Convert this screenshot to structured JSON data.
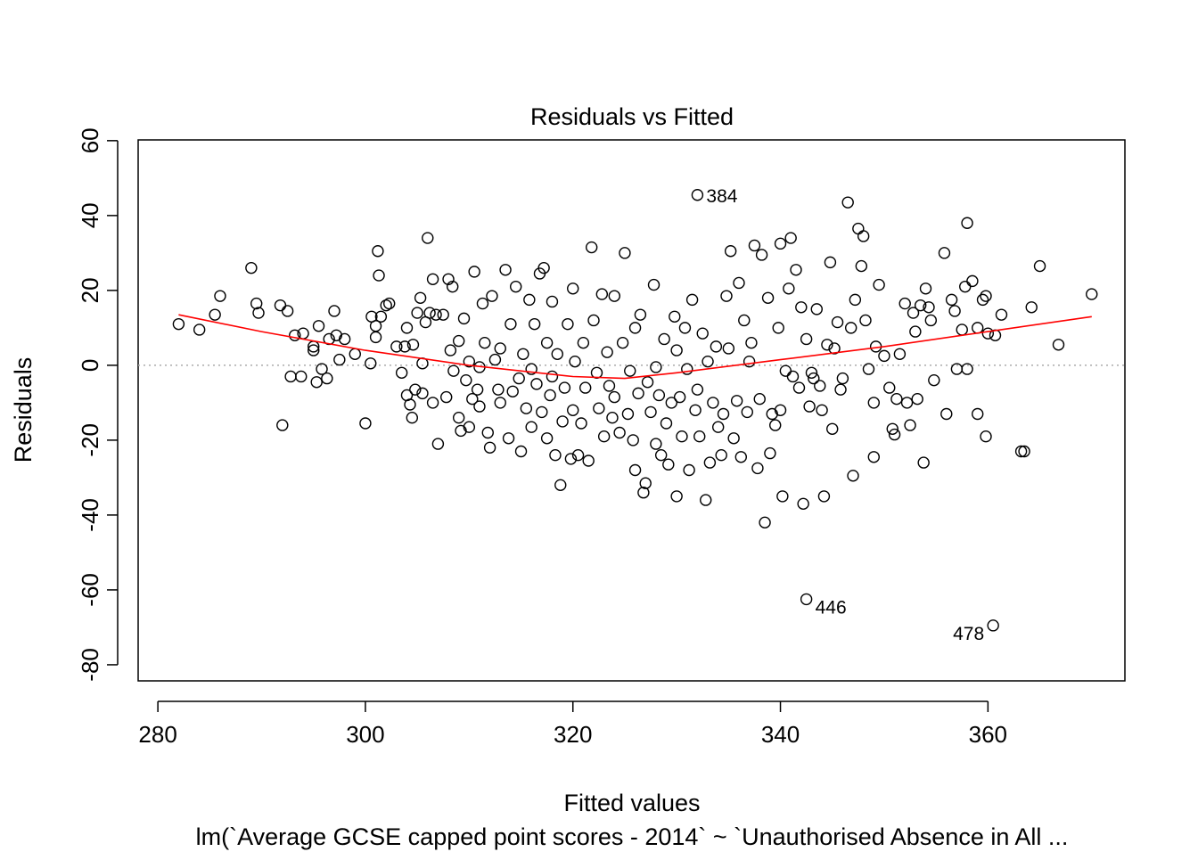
{
  "chart_data": {
    "type": "scatter",
    "title": "Residuals vs Fitted",
    "x_label": "Fitted values",
    "y_label": "Residuals",
    "caption": "lm(`Average GCSE capped point scores - 2014` ~ `Unauthorised Absence in All ...",
    "xlim": [
      278.1,
      373.2
    ],
    "ylim": [
      -84.3,
      60.2
    ],
    "xticks": [
      280,
      300,
      320,
      340,
      360
    ],
    "yticks": [
      -80,
      -60,
      -40,
      -20,
      0,
      20,
      40,
      60
    ],
    "point_color": "#000000",
    "reference_line": 0,
    "x": [
      282,
      284,
      285.5,
      286,
      289,
      289.5,
      289.7,
      291.8,
      292,
      292.5,
      292.8,
      293.2,
      293.8,
      294,
      295,
      295,
      295.3,
      295.5,
      295.8,
      296.3,
      296.5,
      297,
      297.2,
      297.5,
      298,
      299,
      300,
      300.5,
      300.6,
      301,
      301,
      301.2,
      301.3,
      301.5,
      302,
      302.3,
      303,
      303.5,
      303.8,
      304,
      304,
      304.3,
      304.5,
      304.6,
      304.8,
      305,
      305.3,
      305.5,
      305.5,
      305.8,
      306,
      306.2,
      306.5,
      306.5,
      306.8,
      307,
      307.5,
      307.8,
      308,
      308.2,
      308.4,
      308.5,
      309,
      309,
      309.2,
      309.5,
      309.7,
      310,
      310,
      310.3,
      310.5,
      310.8,
      311,
      311,
      311.3,
      311.5,
      311.8,
      312,
      312.2,
      312.5,
      312.8,
      313,
      313,
      313.5,
      313.8,
      314,
      314.2,
      314.5,
      314.8,
      315,
      315.2,
      315.5,
      315.8,
      316,
      316,
      316.3,
      316.5,
      316.8,
      317,
      317.2,
      317.5,
      317.5,
      317.8,
      318,
      318,
      318.3,
      318.5,
      318.8,
      319,
      319.2,
      319.5,
      319.8,
      320,
      320,
      320.2,
      320.5,
      320.8,
      321,
      321.2,
      321.5,
      321.8,
      322,
      322.3,
      322.5,
      322.8,
      323,
      323.3,
      323.5,
      323.8,
      324,
      324,
      324.5,
      324.8,
      325,
      325.3,
      325.5,
      325.8,
      326,
      326,
      326.3,
      326.5,
      326.8,
      327,
      327.2,
      327.5,
      327.8,
      328,
      328,
      328.3,
      328.5,
      328.8,
      329,
      329.2,
      329.5,
      329.8,
      330,
      330,
      330.3,
      330.5,
      330.8,
      331,
      331.2,
      331.5,
      331.8,
      332,
      332.2,
      332.5,
      332.8,
      333,
      333.2,
      333.5,
      333.8,
      334,
      334.3,
      334.5,
      334.8,
      335,
      335.2,
      335.5,
      335.8,
      336,
      336.2,
      336.5,
      336.8,
      337,
      337.2,
      337.5,
      337.8,
      338,
      338.2,
      338.5,
      338.8,
      339,
      339.2,
      339.5,
      339.8,
      340,
      340,
      340.2,
      340.5,
      340.8,
      341,
      341.2,
      341.5,
      341.8,
      342,
      342.2,
      342.5,
      342.8,
      343,
      343.2,
      343.5,
      343.8,
      344,
      344.2,
      344.5,
      344.8,
      345,
      345.2,
      345.5,
      345.8,
      346.5,
      346,
      346.8,
      347,
      347.2,
      347.5,
      347.8,
      348,
      348.2,
      348.5,
      349,
      349,
      349.2,
      349.5,
      350,
      350.5,
      350.8,
      351,
      351.2,
      351.5,
      352,
      352.2,
      352.5,
      352.8,
      353,
      353.2,
      353.5,
      353.8,
      354,
      354.3,
      354.5,
      354.8,
      355.8,
      356,
      356.5,
      356.8,
      357,
      357.5,
      357.8,
      358,
      358,
      358.5,
      359,
      359,
      359.5,
      359.8,
      359.8,
      360,
      360.7,
      361.3,
      363.2,
      363.5,
      364.2,
      365,
      366.8,
      370
    ],
    "values": [
      11,
      9.5,
      13.5,
      18.5,
      26,
      16.5,
      14,
      16,
      -16,
      14.5,
      -3,
      8,
      -3,
      8.5,
      5,
      4,
      -4.5,
      10.5,
      -1,
      -3.5,
      7,
      14.5,
      8,
      1.5,
      7,
      3,
      -15.5,
      0.5,
      13,
      7.5,
      10.5,
      30.5,
      24,
      13,
      16,
      16.5,
      5,
      -2,
      5,
      10,
      -8,
      -10.5,
      -14,
      5.5,
      -6.5,
      14,
      18,
      0.5,
      -7.5,
      11.5,
      34,
      14,
      23,
      -10,
      13.5,
      -21,
      13.5,
      -8.5,
      23,
      4,
      21,
      -1.5,
      6.5,
      -14,
      -17.5,
      12.5,
      -4,
      -16.5,
      1,
      -9,
      25,
      -6.5,
      -0.5,
      -11,
      16.5,
      6,
      -18,
      -22,
      18.5,
      1.5,
      -6.5,
      -10,
      4.5,
      25.5,
      -19.5,
      11,
      -7,
      21,
      -3.5,
      -23,
      3,
      -11.5,
      17.5,
      -1,
      -16.5,
      11,
      -5,
      24.5,
      -12.5,
      26,
      6,
      -19.5,
      -8,
      17,
      -3,
      -24,
      3,
      -32,
      -15,
      -6,
      11,
      -25,
      20.5,
      -12,
      1,
      -24,
      -15.5,
      6,
      -6,
      -25.5,
      31.5,
      12,
      -2,
      -11.5,
      19,
      -19,
      3.5,
      -5.5,
      -14,
      18.5,
      -8.5,
      -18,
      6,
      30,
      -13,
      -1.5,
      -20,
      -28,
      10,
      -7.5,
      13.5,
      -34,
      -31.5,
      -4.5,
      -12.5,
      21.5,
      -0.5,
      -21,
      -8,
      -24,
      7,
      -15.5,
      -26.5,
      -10,
      13,
      -35,
      4,
      -8.5,
      -19,
      10,
      -1,
      -28,
      17.5,
      -12,
      -6.5,
      -19,
      8.5,
      -36,
      1,
      -26,
      -10,
      5,
      -16.5,
      -24,
      -13,
      18.5,
      4.5,
      30.5,
      -19.5,
      -9.5,
      22,
      -24.5,
      12,
      -12.5,
      1,
      6,
      32,
      -27.5,
      -9,
      29.5,
      -42,
      18,
      -23.5,
      -13,
      -16,
      10,
      -12,
      32.5,
      -35,
      -1.5,
      20.5,
      34,
      -3,
      25.5,
      -6,
      15.5,
      -37,
      7,
      -11,
      -2,
      -3.5,
      15,
      -5.5,
      -12,
      -35,
      5.5,
      27.5,
      -17,
      4.5,
      11.5,
      -6.5,
      43.5,
      -3.5,
      10,
      -29.5,
      17.5,
      36.5,
      26.5,
      34.5,
      12,
      -1,
      -10,
      -24.5,
      5,
      21.5,
      2.5,
      -6,
      -17,
      -18.5,
      -9,
      3,
      16.5,
      -10,
      -16,
      14,
      9,
      -9,
      16,
      -26,
      20.5,
      15.5,
      12,
      -4,
      30,
      -13,
      17.5,
      14.5,
      -1,
      9.5,
      21,
      38,
      -1,
      22.5,
      -13,
      10,
      17.5,
      -19,
      18.5,
      8.5,
      8,
      13.5,
      -23,
      -23,
      15.5,
      26.5,
      5.5,
      19
    ],
    "labeled_points": {
      "x": [
        332,
        342.5,
        360.5
      ],
      "values": [
        45.5,
        -62.5,
        -69.5
      ],
      "labels": [
        "384",
        "446",
        "478"
      ]
    },
    "smooth": {
      "color": "#ff0000",
      "x": [
        282,
        290,
        300,
        310,
        320,
        325,
        330,
        340,
        350,
        360,
        370
      ],
      "values": [
        13.5,
        9,
        4,
        0,
        -3,
        -3.5,
        -2,
        1.5,
        5,
        9,
        13
      ]
    }
  }
}
